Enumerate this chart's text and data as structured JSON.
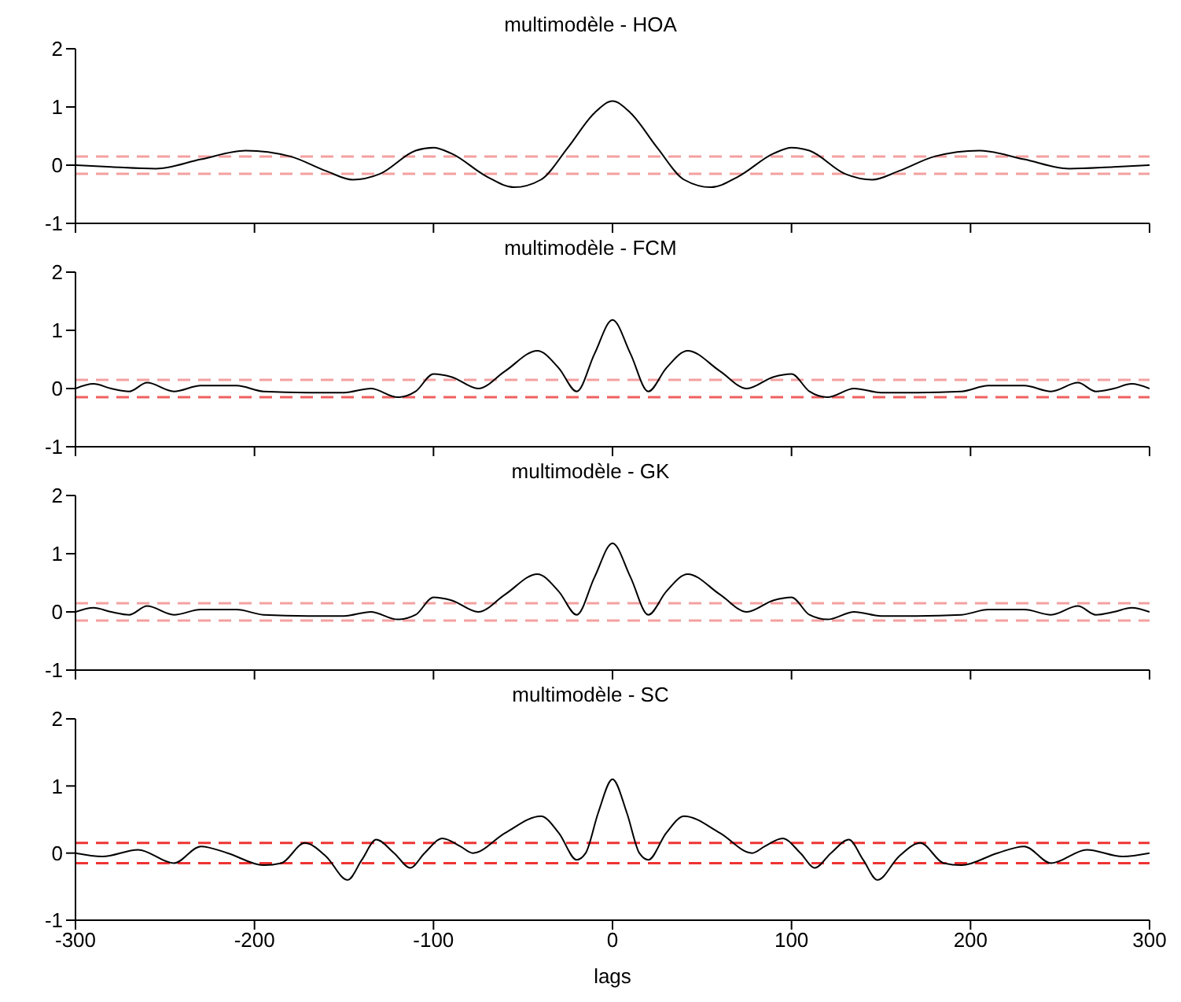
{
  "chart_data": [
    {
      "type": "line",
      "title": "multimodèle - HOA",
      "xlim": [
        -300,
        300
      ],
      "xticks": [
        -300,
        -200,
        -100,
        0,
        100,
        200,
        300
      ],
      "ylim": [
        -1,
        2
      ],
      "yticks": [
        -1,
        0,
        1,
        2
      ],
      "tick_labels": "y",
      "x": [
        -300,
        -280,
        -255,
        -230,
        -205,
        -180,
        -160,
        -145,
        -130,
        -110,
        -100,
        -90,
        -70,
        -55,
        -40,
        -25,
        -10,
        0,
        10,
        25,
        40,
        55,
        70,
        90,
        100,
        110,
        130,
        145,
        160,
        180,
        205,
        230,
        255,
        280,
        300
      ],
      "series": [
        {
          "color": "#000000",
          "values": [
            0.0,
            -0.03,
            -0.06,
            0.1,
            0.25,
            0.15,
            -0.1,
            -0.25,
            -0.15,
            0.25,
            0.3,
            0.2,
            -0.2,
            -0.38,
            -0.25,
            0.3,
            0.9,
            1.1,
            0.9,
            0.3,
            -0.25,
            -0.38,
            -0.2,
            0.2,
            0.3,
            0.25,
            -0.15,
            -0.25,
            -0.1,
            0.15,
            0.25,
            0.1,
            -0.06,
            -0.03,
            0.0
          ]
        }
      ],
      "ref_lines": [
        {
          "axis": "y",
          "value": 0.15,
          "color": "#f4a0a0",
          "line_style": "dashed"
        },
        {
          "axis": "y",
          "value": -0.15,
          "color": "#f4a0a0",
          "line_style": "dashed"
        }
      ]
    },
    {
      "type": "line",
      "title": "multimodèle - FCM",
      "xlim": [
        -300,
        300
      ],
      "xticks": [
        -300,
        -200,
        -100,
        0,
        100,
        200,
        300
      ],
      "ylim": [
        -1,
        2
      ],
      "yticks": [
        -1,
        0,
        1,
        2
      ],
      "tick_labels": "y",
      "x": [
        -300,
        -290,
        -280,
        -270,
        -260,
        -245,
        -230,
        -210,
        -195,
        -170,
        -150,
        -135,
        -120,
        -110,
        -100,
        -90,
        -75,
        -60,
        -42,
        -30,
        -20,
        -10,
        0,
        10,
        20,
        30,
        42,
        60,
        75,
        90,
        100,
        110,
        120,
        135,
        150,
        170,
        195,
        210,
        230,
        245,
        260,
        270,
        280,
        290,
        300
      ],
      "series": [
        {
          "color": "#000000",
          "values": [
            0.0,
            0.08,
            0.0,
            -0.05,
            0.1,
            -0.05,
            0.05,
            0.05,
            -0.05,
            -0.07,
            -0.07,
            0.0,
            -0.15,
            -0.05,
            0.25,
            0.2,
            0.0,
            0.3,
            0.65,
            0.35,
            -0.05,
            0.6,
            1.18,
            0.6,
            -0.05,
            0.35,
            0.65,
            0.3,
            0.0,
            0.2,
            0.25,
            -0.05,
            -0.15,
            0.0,
            -0.07,
            -0.07,
            -0.05,
            0.05,
            0.05,
            -0.05,
            0.1,
            -0.05,
            0.0,
            0.08,
            0.0
          ]
        }
      ],
      "ref_lines": [
        {
          "axis": "y",
          "value": 0.15,
          "color": "#f4a0a0",
          "line_style": "dashed"
        },
        {
          "axis": "y",
          "value": -0.15,
          "color": "#f06060",
          "line_style": "dashed"
        }
      ]
    },
    {
      "type": "line",
      "title": "multimodèle - GK",
      "xlim": [
        -300,
        300
      ],
      "xticks": [
        -300,
        -200,
        -100,
        0,
        100,
        200,
        300
      ],
      "ylim": [
        -1,
        2
      ],
      "yticks": [
        -1,
        0,
        1,
        2
      ],
      "tick_labels": "y",
      "x": [
        -300,
        -290,
        -280,
        -270,
        -260,
        -245,
        -230,
        -210,
        -195,
        -170,
        -150,
        -135,
        -120,
        -110,
        -100,
        -90,
        -75,
        -60,
        -42,
        -30,
        -20,
        -10,
        0,
        10,
        20,
        30,
        42,
        60,
        75,
        90,
        100,
        110,
        120,
        135,
        150,
        170,
        195,
        210,
        230,
        245,
        260,
        270,
        280,
        290,
        300
      ],
      "series": [
        {
          "color": "#000000",
          "values": [
            0.0,
            0.07,
            0.0,
            -0.05,
            0.1,
            -0.05,
            0.04,
            0.04,
            -0.05,
            -0.07,
            -0.07,
            0.0,
            -0.13,
            -0.05,
            0.25,
            0.2,
            0.0,
            0.3,
            0.65,
            0.35,
            -0.05,
            0.6,
            1.18,
            0.6,
            -0.05,
            0.35,
            0.65,
            0.3,
            0.0,
            0.2,
            0.25,
            -0.05,
            -0.13,
            0.0,
            -0.07,
            -0.07,
            -0.05,
            0.04,
            0.04,
            -0.05,
            0.1,
            -0.05,
            0.0,
            0.07,
            0.0
          ]
        }
      ],
      "ref_lines": [
        {
          "axis": "y",
          "value": 0.15,
          "color": "#f4a0a0",
          "line_style": "dashed"
        },
        {
          "axis": "y",
          "value": -0.15,
          "color": "#f4a0a0",
          "line_style": "dashed"
        }
      ]
    },
    {
      "type": "line",
      "title": "multimodèle - SC",
      "xlabel": "lags",
      "xlim": [
        -300,
        300
      ],
      "xticks": [
        -300,
        -200,
        -100,
        0,
        100,
        200,
        300
      ],
      "ylim": [
        -1,
        2
      ],
      "yticks": [
        -1,
        0,
        1,
        2
      ],
      "x": [
        -300,
        -285,
        -265,
        -245,
        -230,
        -215,
        -195,
        -185,
        -172,
        -160,
        -148,
        -140,
        -132,
        -122,
        -113,
        -105,
        -95,
        -85,
        -78,
        -60,
        -40,
        -30,
        -20,
        -15,
        -8,
        0,
        8,
        15,
        20,
        30,
        40,
        60,
        78,
        85,
        95,
        105,
        113,
        122,
        132,
        140,
        148,
        160,
        172,
        185,
        195,
        215,
        230,
        245,
        265,
        285,
        300
      ],
      "series": [
        {
          "color": "#000000",
          "values": [
            0.0,
            -0.05,
            0.05,
            -0.15,
            0.1,
            0.0,
            -0.18,
            -0.15,
            0.15,
            -0.05,
            -0.4,
            -0.1,
            0.2,
            0.0,
            -0.22,
            0.0,
            0.22,
            0.1,
            0.0,
            0.3,
            0.55,
            0.3,
            -0.1,
            0.0,
            0.6,
            1.1,
            0.6,
            0.0,
            -0.1,
            0.3,
            0.55,
            0.3,
            0.0,
            0.1,
            0.22,
            0.0,
            -0.22,
            0.0,
            0.2,
            -0.1,
            -0.4,
            -0.05,
            0.15,
            -0.15,
            -0.18,
            0.0,
            0.1,
            -0.15,
            0.05,
            -0.05,
            0.0
          ]
        }
      ],
      "ref_lines": [
        {
          "axis": "y",
          "value": 0.15,
          "color": "#ee3333",
          "line_style": "dashed"
        },
        {
          "axis": "y",
          "value": -0.15,
          "color": "#ee3333",
          "line_style": "dashed"
        }
      ]
    }
  ]
}
